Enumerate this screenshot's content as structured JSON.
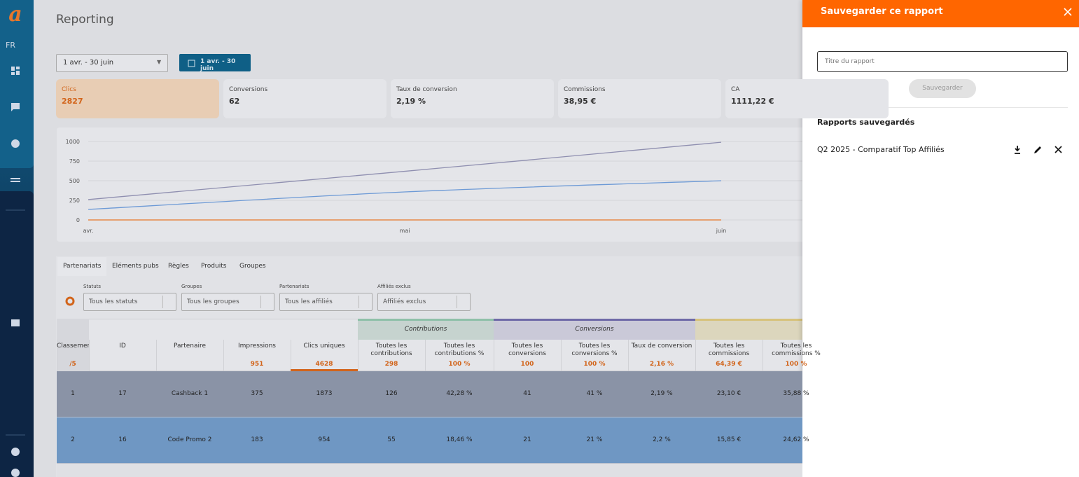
{
  "sidebar": {
    "language": "FR"
  },
  "header": {
    "title": "Reporting"
  },
  "date_select": "1 avr. - 30 juin",
  "date_button": "1 avr. - 30 juin",
  "kpis": [
    {
      "label": "Clics",
      "value": "2827"
    },
    {
      "label": "Conversions",
      "value": "62"
    },
    {
      "label": "Taux de conversion",
      "value": "2,19 %"
    },
    {
      "label": "Commissions",
      "value": "38,95 €"
    },
    {
      "label": "CA",
      "value": "1111,22 €"
    }
  ],
  "chart": {
    "type": "line",
    "categories": [
      "avr.",
      "mai",
      "juin"
    ],
    "ylim": [
      0,
      1000
    ],
    "yticks": [
      0,
      250,
      500,
      750,
      1000
    ],
    "series": [
      {
        "color": "#8f8fb0",
        "values": [
          260,
          620,
          990
        ]
      },
      {
        "color": "#6d9ad6",
        "values": [
          134,
          357,
          500
        ]
      },
      {
        "color": "#e8772a",
        "values": [
          0,
          0,
          0
        ]
      }
    ]
  },
  "tabs": [
    "Partenariats",
    "Eléments pubs",
    "Règles",
    "Produits",
    "Groupes"
  ],
  "filters": [
    {
      "label": "Statuts",
      "value": "Tous les statuts"
    },
    {
      "label": "Groupes",
      "value": "Tous les groupes"
    },
    {
      "label": "Partenariats",
      "value": "Tous les affiliés"
    },
    {
      "label": "Affiliés exclus",
      "value": "Affiliés exclus"
    }
  ],
  "table": {
    "groups": [
      "Contributions",
      "Conversions"
    ],
    "columns": [
      "Classement",
      "ID",
      "Partenaire",
      "Impressions",
      "Clics uniques",
      "Toutes les contributions",
      "Toutes les contributions %",
      "Toutes les conversions",
      "Toutes les conversions %",
      "Taux de conversion",
      "Toutes les commissions",
      "Toutes les commissions %"
    ],
    "totals": [
      "/5",
      null,
      null,
      "951",
      "4628",
      "298",
      "100 %",
      "100",
      "100 %",
      "2,16 %",
      "64,39 €",
      "100 %"
    ],
    "rows": [
      [
        "1",
        "17",
        "Cashback 1",
        "375",
        "1873",
        "126",
        "42,28 %",
        "41",
        "41 %",
        "2,19 %",
        "23,10 €",
        "35,88 %"
      ],
      [
        "2",
        "16",
        "Code Promo 2",
        "183",
        "954",
        "55",
        "18,46 %",
        "21",
        "21 %",
        "2,2 %",
        "15,85 €",
        "24,62 %"
      ]
    ]
  },
  "panel": {
    "title": "Sauvegarder ce rapport",
    "input_placeholder": "Titre du rapport",
    "save_button": "Sauvegarder",
    "saved_heading": "Rapports sauvegardés",
    "saved_reports": [
      "Q2 2025 - Comparatif Top Affiliés"
    ]
  }
}
